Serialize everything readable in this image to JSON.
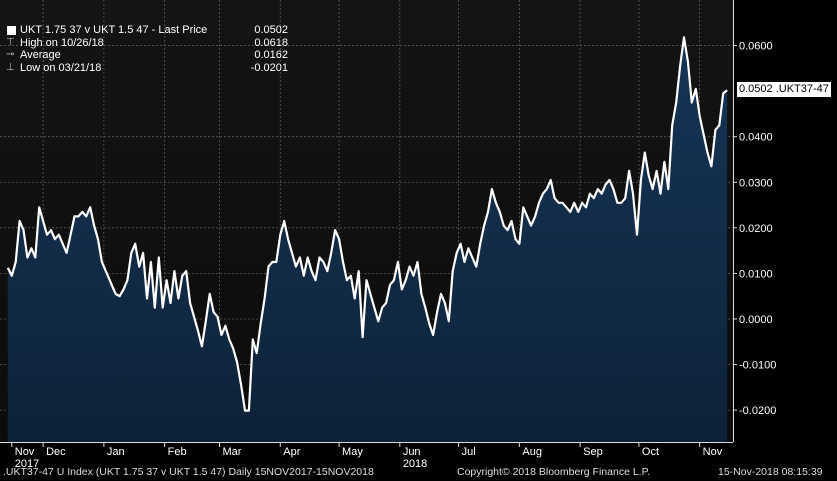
{
  "legend": {
    "series_label": "UKT 1.75 37 v UKT 1.5 47 - Last Price",
    "last_value": "0.0502",
    "high_label": "High on 10/26/18",
    "high_value": "0.0618",
    "avg_label": "Average",
    "avg_value": "0.0162",
    "low_label": "Low on 03/21/18",
    "low_value": "-0.0201"
  },
  "callout": "0.0502 .UKT37-47",
  "footer": {
    "left": ".UKT37-47 U Index (UKT 1.75 37 v UKT 1.5 47)  Daily 15NOV2017-15NOV2018",
    "center": "Copyright© 2018 Bloomberg Finance L.P.",
    "right": "15-Nov-2018 08:15:39"
  },
  "colors": {
    "background": "#000000",
    "plot_top": "#141414",
    "fill": "#0f2740",
    "line": "#ffffff",
    "grid": "#5a5a5a"
  },
  "chart_data": {
    "type": "area",
    "title": "",
    "xlabel": "",
    "ylabel": "",
    "ylim": [
      -0.027,
      0.07
    ],
    "y_ticks": [
      {
        "value": 0.06,
        "label": "0.0600"
      },
      {
        "value": 0.04,
        "label": "0.0400"
      },
      {
        "value": 0.03,
        "label": "0.0300"
      },
      {
        "value": 0.02,
        "label": "0.0200"
      },
      {
        "value": 0.01,
        "label": "0.0100"
      },
      {
        "value": 0.0,
        "label": "0.0000"
      },
      {
        "value": -0.01,
        "label": "-0.0100"
      },
      {
        "value": -0.02,
        "label": "-0.0200"
      }
    ],
    "x_ticks": [
      {
        "label": "Nov",
        "sublabel": "2017",
        "date": "2017-11-15"
      },
      {
        "label": "Dec",
        "sublabel": "",
        "date": "2017-12-01"
      },
      {
        "label": "Jan",
        "sublabel": "",
        "date": "2018-01-01"
      },
      {
        "label": "Feb",
        "sublabel": "",
        "date": "2018-02-01"
      },
      {
        "label": "Mar",
        "sublabel": "",
        "date": "2018-03-01"
      },
      {
        "label": "Apr",
        "sublabel": "",
        "date": "2018-04-01"
      },
      {
        "label": "May",
        "sublabel": "",
        "date": "2018-05-01"
      },
      {
        "label": "Jun",
        "sublabel": "2018",
        "date": "2018-06-01"
      },
      {
        "label": "Jul",
        "sublabel": "",
        "date": "2018-07-01"
      },
      {
        "label": "Aug",
        "sublabel": "",
        "date": "2018-08-01"
      },
      {
        "label": "Sep",
        "sublabel": "",
        "date": "2018-09-01"
      },
      {
        "label": "Oct",
        "sublabel": "",
        "date": "2018-10-01"
      },
      {
        "label": "Nov",
        "sublabel": "",
        "date": "2018-11-01"
      }
    ],
    "series": [
      {
        "points": [
          [
            "2017-11-13",
            0.0112
          ],
          [
            "2017-11-15",
            0.0095
          ],
          [
            "2017-11-17",
            0.0125
          ],
          [
            "2017-11-19",
            0.0215
          ],
          [
            "2017-11-21",
            0.0195
          ],
          [
            "2017-11-23",
            0.0135
          ],
          [
            "2017-11-25",
            0.0155
          ],
          [
            "2017-11-27",
            0.0135
          ],
          [
            "2017-11-29",
            0.0245
          ],
          [
            "2017-12-01",
            0.0215
          ],
          [
            "2017-12-03",
            0.0185
          ],
          [
            "2017-12-05",
            0.0195
          ],
          [
            "2017-12-07",
            0.0175
          ],
          [
            "2017-12-09",
            0.0185
          ],
          [
            "2017-12-11",
            0.0165
          ],
          [
            "2017-12-13",
            0.0145
          ],
          [
            "2017-12-15",
            0.0185
          ],
          [
            "2017-12-17",
            0.0225
          ],
          [
            "2017-12-19",
            0.0225
          ],
          [
            "2017-12-21",
            0.0235
          ],
          [
            "2017-12-23",
            0.0225
          ],
          [
            "2017-12-25",
            0.0245
          ],
          [
            "2017-12-27",
            0.0205
          ],
          [
            "2017-12-29",
            0.0175
          ],
          [
            "2017-12-31",
            0.0125
          ],
          [
            "2018-01-03",
            0.0095
          ],
          [
            "2018-01-05",
            0.0075
          ],
          [
            "2018-01-07",
            0.0055
          ],
          [
            "2018-01-09",
            0.005
          ],
          [
            "2018-01-11",
            0.0065
          ],
          [
            "2018-01-13",
            0.0085
          ],
          [
            "2018-01-15",
            0.0145
          ],
          [
            "2018-01-17",
            0.0165
          ],
          [
            "2018-01-19",
            0.0115
          ],
          [
            "2018-01-21",
            0.0145
          ],
          [
            "2018-01-23",
            0.0045
          ],
          [
            "2018-01-25",
            0.0125
          ],
          [
            "2018-01-27",
            0.0025
          ],
          [
            "2018-01-29",
            0.0135
          ],
          [
            "2018-01-31",
            0.0025
          ],
          [
            "2018-02-02",
            0.0085
          ],
          [
            "2018-02-04",
            0.0035
          ],
          [
            "2018-02-06",
            0.0105
          ],
          [
            "2018-02-08",
            0.0045
          ],
          [
            "2018-02-10",
            0.0095
          ],
          [
            "2018-02-12",
            0.0105
          ],
          [
            "2018-02-14",
            0.0035
          ],
          [
            "2018-02-16",
            0.0005
          ],
          [
            "2018-02-18",
            -0.0025
          ],
          [
            "2018-02-20",
            -0.006
          ],
          [
            "2018-02-22",
            -0.0005
          ],
          [
            "2018-02-24",
            0.0055
          ],
          [
            "2018-02-26",
            0.0015
          ],
          [
            "2018-02-28",
            0.0005
          ],
          [
            "2018-03-02",
            -0.0035
          ],
          [
            "2018-03-04",
            -0.0015
          ],
          [
            "2018-03-06",
            -0.0045
          ],
          [
            "2018-03-08",
            -0.0065
          ],
          [
            "2018-03-10",
            -0.0095
          ],
          [
            "2018-03-12",
            -0.0145
          ],
          [
            "2018-03-14",
            -0.0201
          ],
          [
            "2018-03-16",
            -0.0201
          ],
          [
            "2018-03-18",
            -0.0045
          ],
          [
            "2018-03-20",
            -0.0075
          ],
          [
            "2018-03-22",
            -0.001
          ],
          [
            "2018-03-24",
            0.0045
          ],
          [
            "2018-03-26",
            0.0115
          ],
          [
            "2018-03-28",
            0.0125
          ],
          [
            "2018-03-30",
            0.0125
          ],
          [
            "2018-04-01",
            0.0185
          ],
          [
            "2018-04-03",
            0.0215
          ],
          [
            "2018-04-05",
            0.0175
          ],
          [
            "2018-04-07",
            0.0145
          ],
          [
            "2018-04-09",
            0.0115
          ],
          [
            "2018-04-11",
            0.0135
          ],
          [
            "2018-04-13",
            0.0095
          ],
          [
            "2018-04-15",
            0.0135
          ],
          [
            "2018-04-17",
            0.0105
          ],
          [
            "2018-04-19",
            0.0085
          ],
          [
            "2018-04-21",
            0.0135
          ],
          [
            "2018-04-23",
            0.0125
          ],
          [
            "2018-04-25",
            0.0105
          ],
          [
            "2018-04-27",
            0.0145
          ],
          [
            "2018-04-29",
            0.0195
          ],
          [
            "2018-05-01",
            0.0175
          ],
          [
            "2018-05-03",
            0.0125
          ],
          [
            "2018-05-05",
            0.0085
          ],
          [
            "2018-05-07",
            0.0095
          ],
          [
            "2018-05-09",
            0.0045
          ],
          [
            "2018-05-11",
            0.0105
          ],
          [
            "2018-05-13",
            -0.004
          ],
          [
            "2018-05-15",
            0.0085
          ],
          [
            "2018-05-17",
            0.0055
          ],
          [
            "2018-05-19",
            0.0025
          ],
          [
            "2018-05-21",
            -0.0005
          ],
          [
            "2018-05-23",
            0.0025
          ],
          [
            "2018-05-25",
            0.0035
          ],
          [
            "2018-05-27",
            0.0075
          ],
          [
            "2018-05-29",
            0.0085
          ],
          [
            "2018-05-31",
            0.0125
          ],
          [
            "2018-06-02",
            0.0065
          ],
          [
            "2018-06-04",
            0.0085
          ],
          [
            "2018-06-06",
            0.0115
          ],
          [
            "2018-06-08",
            0.0095
          ],
          [
            "2018-06-10",
            0.0125
          ],
          [
            "2018-06-12",
            0.0055
          ],
          [
            "2018-06-14",
            0.0025
          ],
          [
            "2018-06-16",
            -0.001
          ],
          [
            "2018-06-18",
            -0.0035
          ],
          [
            "2018-06-20",
            0.0015
          ],
          [
            "2018-06-22",
            0.0055
          ],
          [
            "2018-06-24",
            0.0035
          ],
          [
            "2018-06-26",
            -0.0005
          ],
          [
            "2018-06-28",
            0.0105
          ],
          [
            "2018-06-30",
            0.0145
          ],
          [
            "2018-07-02",
            0.0165
          ],
          [
            "2018-07-04",
            0.0125
          ],
          [
            "2018-07-06",
            0.0155
          ],
          [
            "2018-07-08",
            0.0135
          ],
          [
            "2018-07-10",
            0.0115
          ],
          [
            "2018-07-12",
            0.0165
          ],
          [
            "2018-07-14",
            0.0205
          ],
          [
            "2018-07-16",
            0.0235
          ],
          [
            "2018-07-18",
            0.0285
          ],
          [
            "2018-07-20",
            0.0255
          ],
          [
            "2018-07-22",
            0.0235
          ],
          [
            "2018-07-24",
            0.0205
          ],
          [
            "2018-07-26",
            0.0195
          ],
          [
            "2018-07-28",
            0.0215
          ],
          [
            "2018-07-30",
            0.0175
          ],
          [
            "2018-08-01",
            0.0165
          ],
          [
            "2018-08-03",
            0.0245
          ],
          [
            "2018-08-05",
            0.0225
          ],
          [
            "2018-08-07",
            0.0205
          ],
          [
            "2018-08-09",
            0.0225
          ],
          [
            "2018-08-11",
            0.0255
          ],
          [
            "2018-08-13",
            0.0275
          ],
          [
            "2018-08-15",
            0.0285
          ],
          [
            "2018-08-17",
            0.0305
          ],
          [
            "2018-08-19",
            0.0265
          ],
          [
            "2018-08-21",
            0.0255
          ],
          [
            "2018-08-23",
            0.0255
          ],
          [
            "2018-08-25",
            0.0245
          ],
          [
            "2018-08-27",
            0.0235
          ],
          [
            "2018-08-29",
            0.0255
          ],
          [
            "2018-08-31",
            0.0235
          ],
          [
            "2018-09-02",
            0.0255
          ],
          [
            "2018-09-04",
            0.0245
          ],
          [
            "2018-09-06",
            0.0275
          ],
          [
            "2018-09-08",
            0.0265
          ],
          [
            "2018-09-10",
            0.0285
          ],
          [
            "2018-09-12",
            0.0275
          ],
          [
            "2018-09-14",
            0.0295
          ],
          [
            "2018-09-16",
            0.0305
          ],
          [
            "2018-09-18",
            0.0285
          ],
          [
            "2018-09-20",
            0.0255
          ],
          [
            "2018-09-22",
            0.0255
          ],
          [
            "2018-09-24",
            0.0265
          ],
          [
            "2018-09-26",
            0.0325
          ],
          [
            "2018-09-28",
            0.0275
          ],
          [
            "2018-09-30",
            0.0185
          ],
          [
            "2018-10-02",
            0.0305
          ],
          [
            "2018-10-04",
            0.0365
          ],
          [
            "2018-10-06",
            0.0315
          ],
          [
            "2018-10-08",
            0.0285
          ],
          [
            "2018-10-10",
            0.0325
          ],
          [
            "2018-10-12",
            0.0275
          ],
          [
            "2018-10-14",
            0.0345
          ],
          [
            "2018-10-16",
            0.0285
          ],
          [
            "2018-10-18",
            0.0425
          ],
          [
            "2018-10-20",
            0.0475
          ],
          [
            "2018-10-22",
            0.0555
          ],
          [
            "2018-10-24",
            0.0618
          ],
          [
            "2018-10-26",
            0.0565
          ],
          [
            "2018-10-28",
            0.0475
          ],
          [
            "2018-10-30",
            0.0505
          ],
          [
            "2018-11-01",
            0.0445
          ],
          [
            "2018-11-03",
            0.0405
          ],
          [
            "2018-11-05",
            0.0365
          ],
          [
            "2018-11-07",
            0.0335
          ],
          [
            "2018-11-09",
            0.0415
          ],
          [
            "2018-11-11",
            0.0425
          ],
          [
            "2018-11-13",
            0.0495
          ],
          [
            "2018-11-15",
            0.0502
          ]
        ]
      }
    ]
  }
}
